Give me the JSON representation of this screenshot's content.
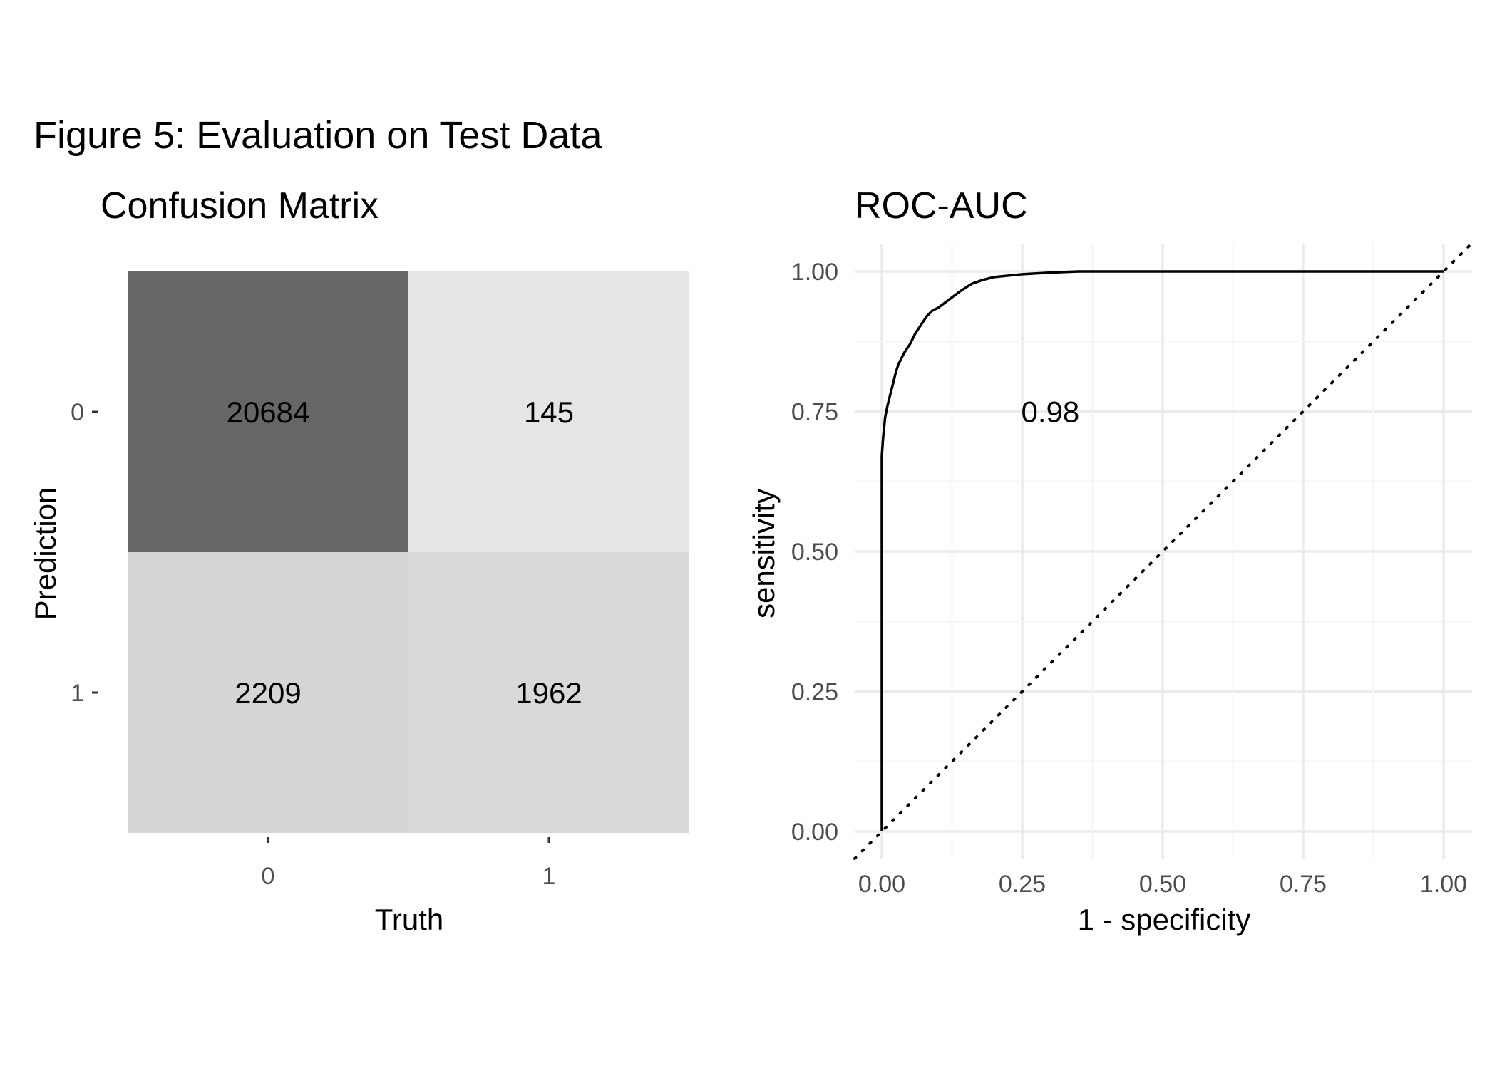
{
  "figure": {
    "title": "Figure 5: Evaluation on Test Data"
  },
  "chart_data": [
    {
      "type": "heatmap",
      "title": "Confusion Matrix",
      "xlabel": "Truth",
      "ylabel": "Prediction",
      "x_categories": [
        "0",
        "1"
      ],
      "y_categories": [
        "0",
        "1"
      ],
      "cells": [
        {
          "truth": "0",
          "prediction": "0",
          "value": 20684,
          "label": "20684",
          "fill": "#666666"
        },
        {
          "truth": "1",
          "prediction": "0",
          "value": 145,
          "label": "145",
          "fill": "#e5e5e5"
        },
        {
          "truth": "0",
          "prediction": "1",
          "value": 2209,
          "label": "2209",
          "fill": "#d6d6d6"
        },
        {
          "truth": "1",
          "prediction": "1",
          "value": 1962,
          "label": "1962",
          "fill": "#d9d9d9"
        }
      ]
    },
    {
      "type": "line",
      "title": "ROC-AUC",
      "xlabel": "1 - specificity",
      "ylabel": "sensitivity",
      "xlim": [
        0,
        1
      ],
      "ylim": [
        0,
        1
      ],
      "x_ticks": [
        "0.00",
        "0.25",
        "0.50",
        "0.75",
        "1.00"
      ],
      "y_ticks": [
        "0.00",
        "0.25",
        "0.50",
        "0.75",
        "1.00"
      ],
      "grid": true,
      "reference_line": "dotted diagonal",
      "annotation": {
        "text": "0.98",
        "x": 0.3,
        "y": 0.75
      },
      "series": [
        {
          "x": [
            0,
            0,
            0.002,
            0.006,
            0.01,
            0.015,
            0.02,
            0.025,
            0.03,
            0.04,
            0.05,
            0.06,
            0.07,
            0.08,
            0.09,
            0.1,
            0.12,
            0.14,
            0.16,
            0.18,
            0.2,
            0.25,
            0.3,
            0.35,
            0.5,
            1.0
          ],
          "y": [
            0,
            0.67,
            0.7,
            0.74,
            0.76,
            0.78,
            0.8,
            0.82,
            0.835,
            0.855,
            0.87,
            0.89,
            0.905,
            0.92,
            0.93,
            0.935,
            0.95,
            0.965,
            0.978,
            0.985,
            0.99,
            0.995,
            0.998,
            1.0,
            1.0,
            1.0
          ]
        }
      ]
    }
  ]
}
